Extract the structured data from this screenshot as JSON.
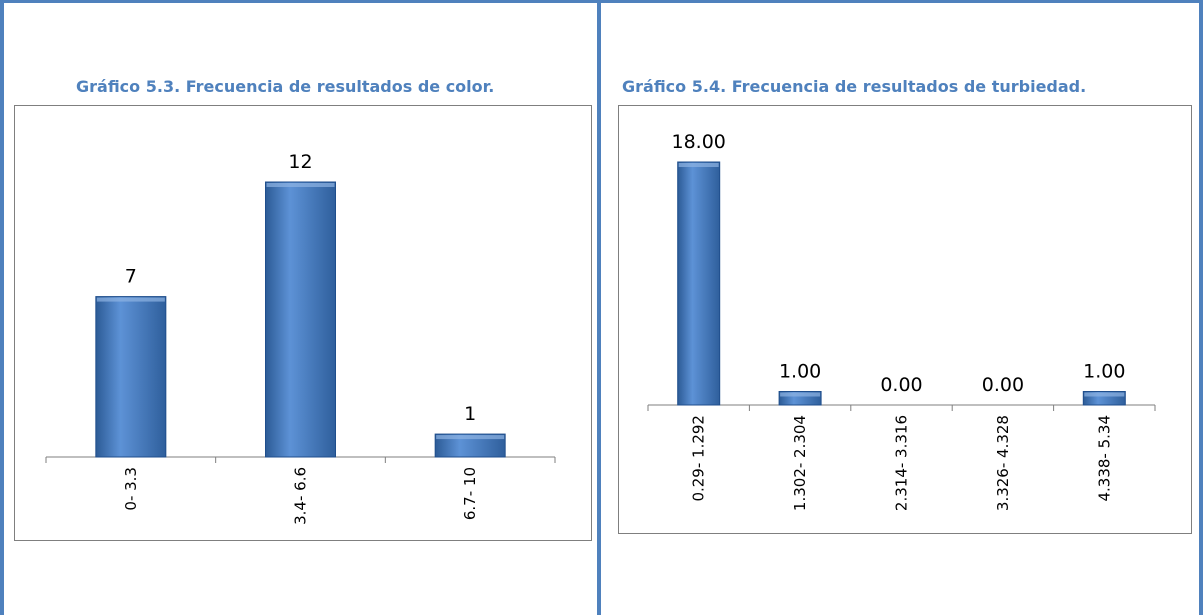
{
  "chart_data": [
    {
      "type": "bar",
      "title": "Gráfico 5.3. Frecuencia de resultados de color.",
      "categories": [
        "0- 3.3",
        "3.4- 6.6",
        "6.7- 10"
      ],
      "values": [
        7,
        12,
        1
      ],
      "value_labels": [
        "7",
        "12",
        "1"
      ],
      "xlabel": "",
      "ylabel": "",
      "ylim": [
        0,
        13
      ],
      "grid": false,
      "legend": "none",
      "bar_color": "#4f81bd"
    },
    {
      "type": "bar",
      "title": "Gráfico 5.4. Frecuencia de resultados de turbiedad.",
      "categories": [
        "0.29- 1.292",
        "1.302- 2.304",
        "2.314- 3.316",
        "3.326- 4.328",
        "4.338- 5.34"
      ],
      "values": [
        18,
        1,
        0,
        0,
        1
      ],
      "value_labels": [
        "18.00",
        "1.00",
        "0.00",
        "0.00",
        "1.00"
      ],
      "xlabel": "",
      "ylabel": "",
      "ylim": [
        0,
        18
      ],
      "grid": false,
      "legend": "none",
      "bar_color": "#4f81bd"
    }
  ]
}
